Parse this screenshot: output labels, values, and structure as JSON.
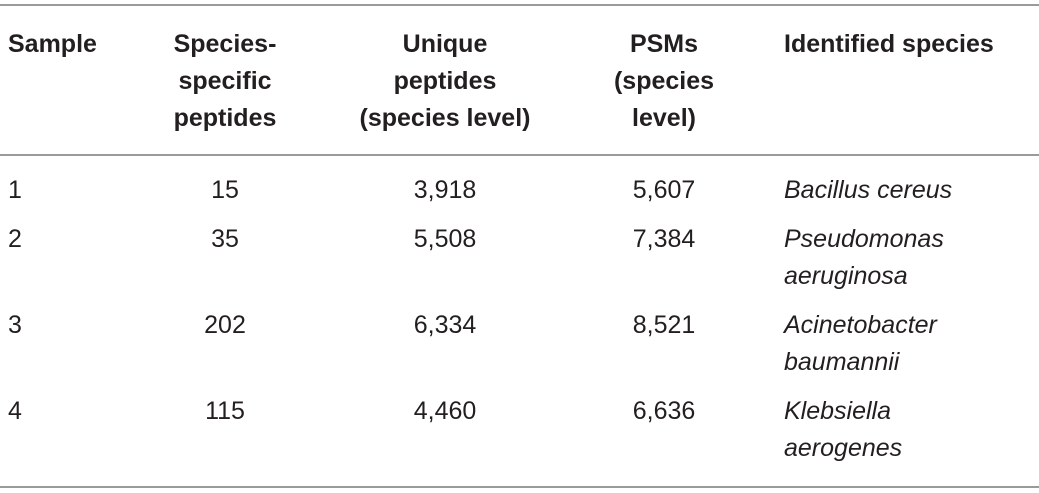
{
  "header": {
    "sample": [
      "Sample"
    ],
    "species_specific": [
      "Species-",
      "specific",
      "peptides"
    ],
    "unique_peptides": [
      "Unique",
      "peptides",
      "(species level)"
    ],
    "psms": [
      "PSMs",
      "(species",
      "level)"
    ],
    "identified_species": [
      "Identified species"
    ]
  },
  "rows": [
    {
      "sample": "1",
      "species_specific": "15",
      "unique_peptides": "3,918",
      "psms": "5,607",
      "species": [
        "Bacillus cereus"
      ]
    },
    {
      "sample": "2",
      "species_specific": "35",
      "unique_peptides": "5,508",
      "psms": "7,384",
      "species": [
        "Pseudomonas",
        "aeruginosa"
      ]
    },
    {
      "sample": "3",
      "species_specific": "202",
      "unique_peptides": "6,334",
      "psms": "8,521",
      "species": [
        "Acinetobacter",
        "baumannii"
      ]
    },
    {
      "sample": "4",
      "species_specific": "115",
      "unique_peptides": "4,460",
      "psms": "6,636",
      "species": [
        "Klebsiella",
        "aerogenes"
      ]
    }
  ]
}
